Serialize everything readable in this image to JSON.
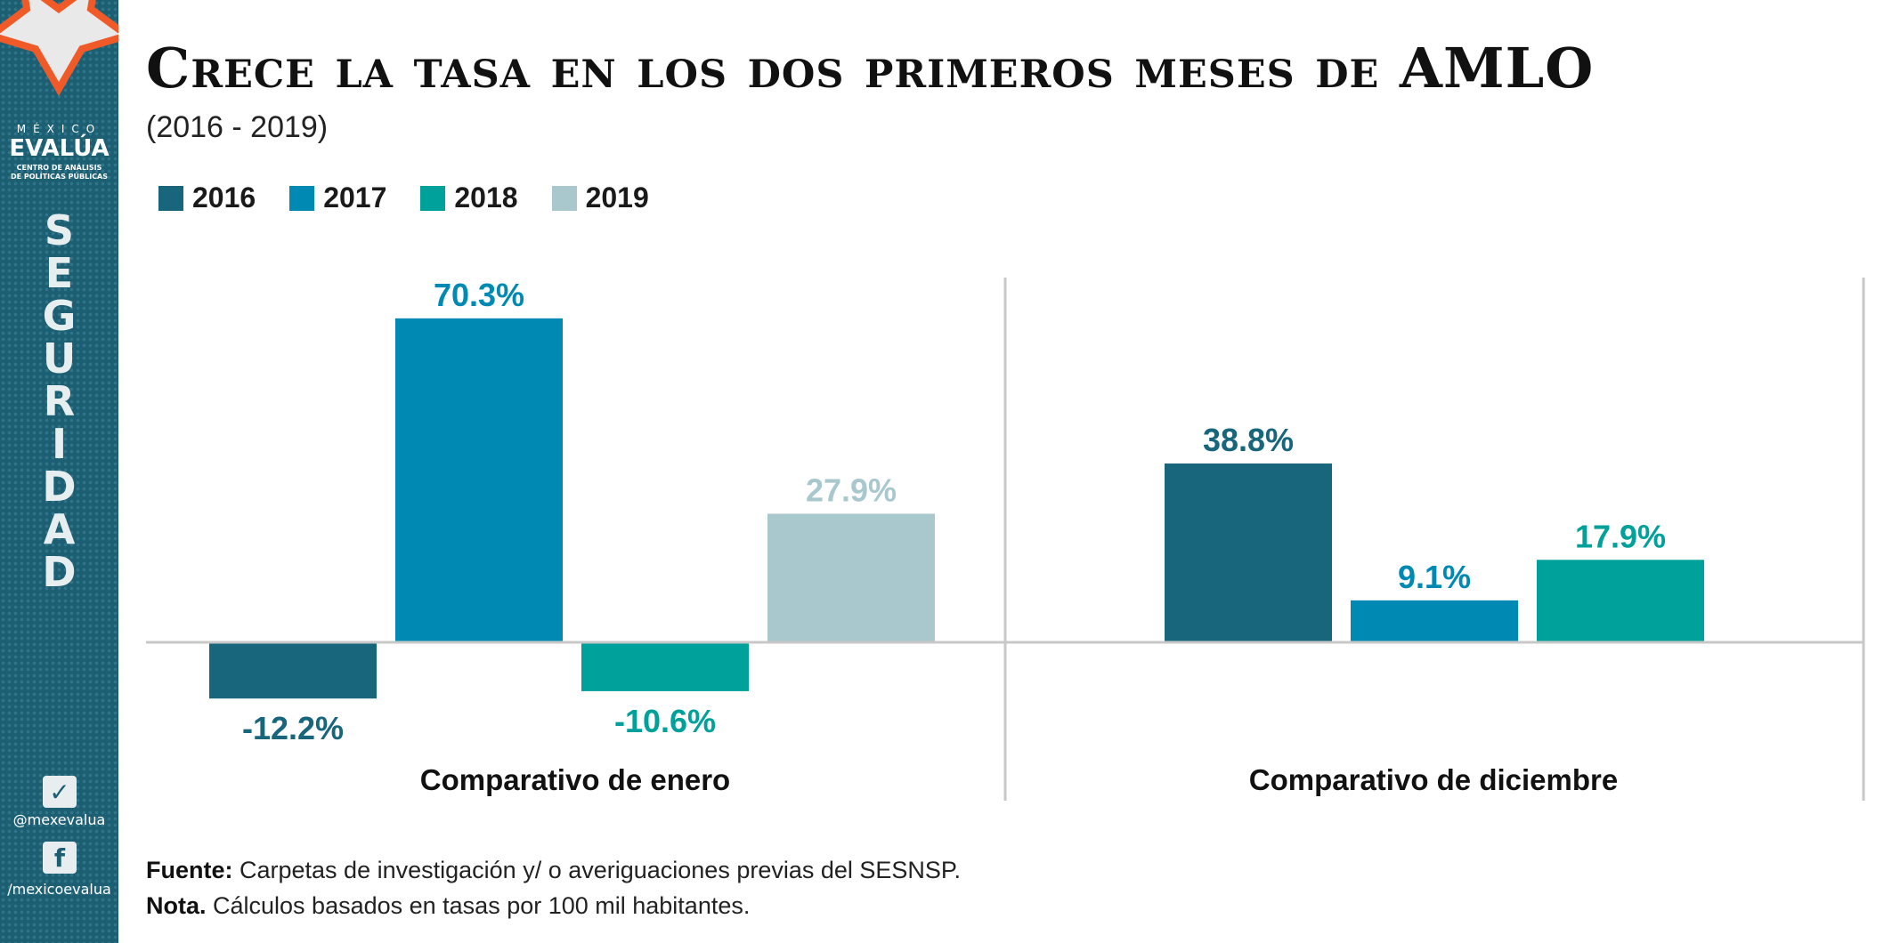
{
  "sidebar": {
    "logo_top": "MÉXICO",
    "logo_main": "EVALÚA",
    "logo_sub1": "CENTRO DE ANÁLISIS",
    "logo_sub2": "DE POLÍTICAS PÚBLICAS",
    "section": "SEGURIDAD",
    "twitter": "@mexevalua",
    "facebook": "/mexicoevalua",
    "twitter_icon": "twitter-icon",
    "facebook_icon": "facebook-icon"
  },
  "header": {
    "title": "Crece la tasa en los dos primeros meses de AMLO",
    "subtitle": "(2016 - 2019)"
  },
  "footer": {
    "source_label": "Fuente:",
    "source_text": " Carpetas de investigación y/ o averiguaciones previas del SESNSP.",
    "note_label": "Nota.",
    "note_text": " Cálculos basados en tasas por 100 mil habitantes."
  },
  "chart_data": {
    "type": "bar",
    "title": "Crece la tasa en los dos primeros meses de AMLO",
    "subtitle": "(2016 - 2019)",
    "legend_position": "top-left",
    "grid": false,
    "unit": "%",
    "categories": [
      "Comparativo de enero",
      "Comparativo de diciembre"
    ],
    "series": [
      {
        "name": "2016",
        "color": "#17667c",
        "values": [
          -12.2,
          38.8
        ],
        "labels": [
          "-12.2%",
          "38.8%"
        ]
      },
      {
        "name": "2017",
        "color": "#0089b3",
        "values": [
          70.3,
          9.1
        ],
        "labels": [
          "70.3%",
          "9.1%"
        ]
      },
      {
        "name": "2018",
        "color": "#00a19a",
        "values": [
          -10.6,
          17.9
        ],
        "labels": [
          "-10.6%",
          "17.9%"
        ]
      },
      {
        "name": "2019",
        "color": "#a9c8cd",
        "values": [
          27.9,
          null
        ],
        "labels": [
          "27.9%",
          ""
        ]
      }
    ]
  }
}
